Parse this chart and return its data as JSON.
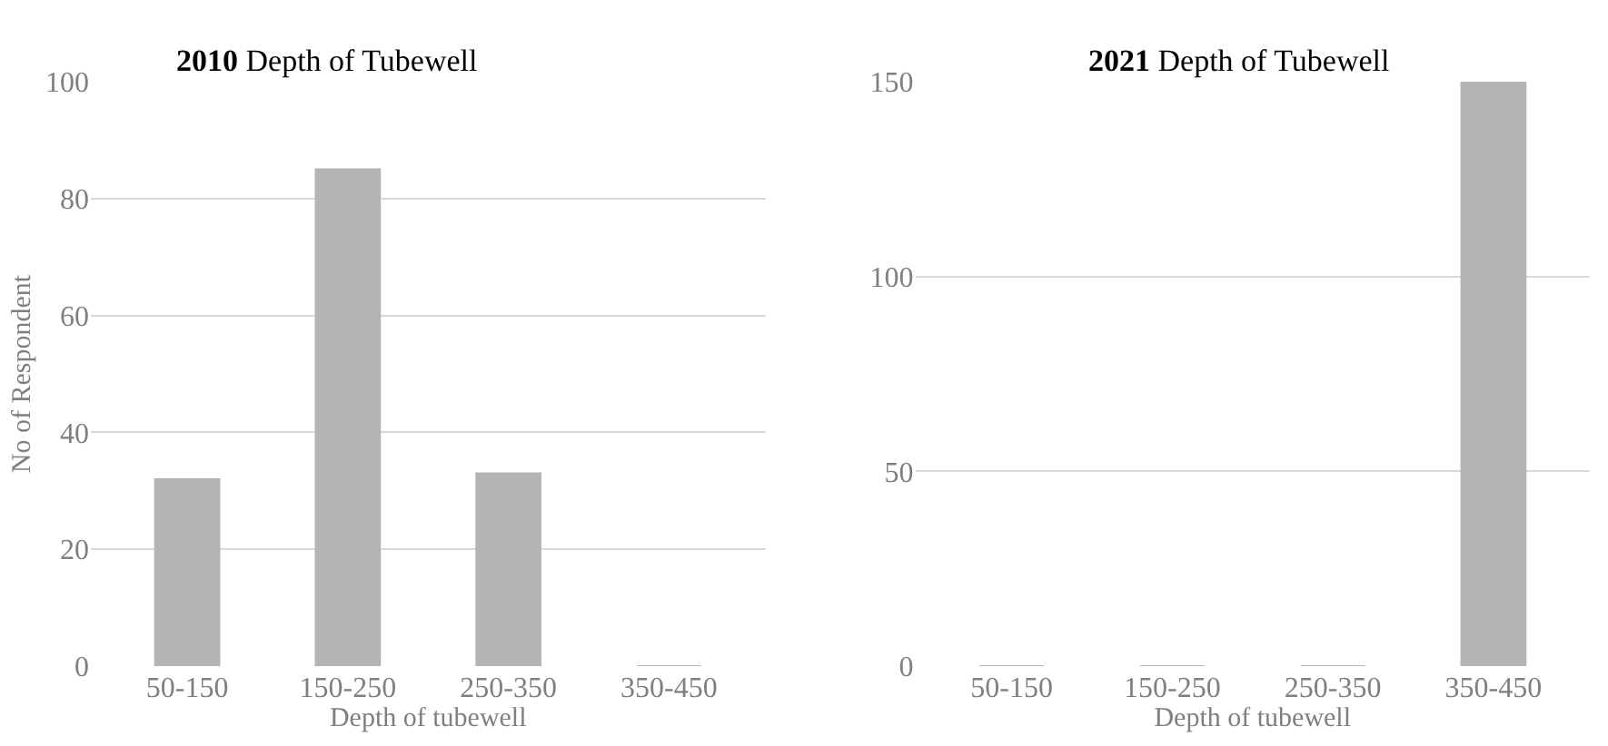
{
  "chart_data": [
    {
      "type": "bar",
      "title": "2010 Depth of Tubewell",
      "xlabel": "Depth of tubewell",
      "ylabel": "No of Respondent",
      "categories": [
        "50-150",
        "150-250",
        "250-350",
        "350-450"
      ],
      "values": [
        32,
        85,
        33,
        0
      ],
      "color": "#b4b4b4",
      "ylim": [
        0,
        100
      ],
      "yticks": [
        0,
        20,
        40,
        60,
        80,
        100
      ],
      "grid": "y"
    },
    {
      "type": "bar",
      "title": "2021 Depth of Tubewell",
      "xlabel": "Depth of tubewell",
      "categories": [
        "50-150",
        "150-250",
        "250-350",
        "350-450"
      ],
      "values": [
        0,
        0,
        0,
        150
      ],
      "color": "#b4b4b4",
      "ylim": [
        0,
        150
      ],
      "yticks": [
        0,
        50,
        100,
        150
      ],
      "grid": "y"
    }
  ]
}
